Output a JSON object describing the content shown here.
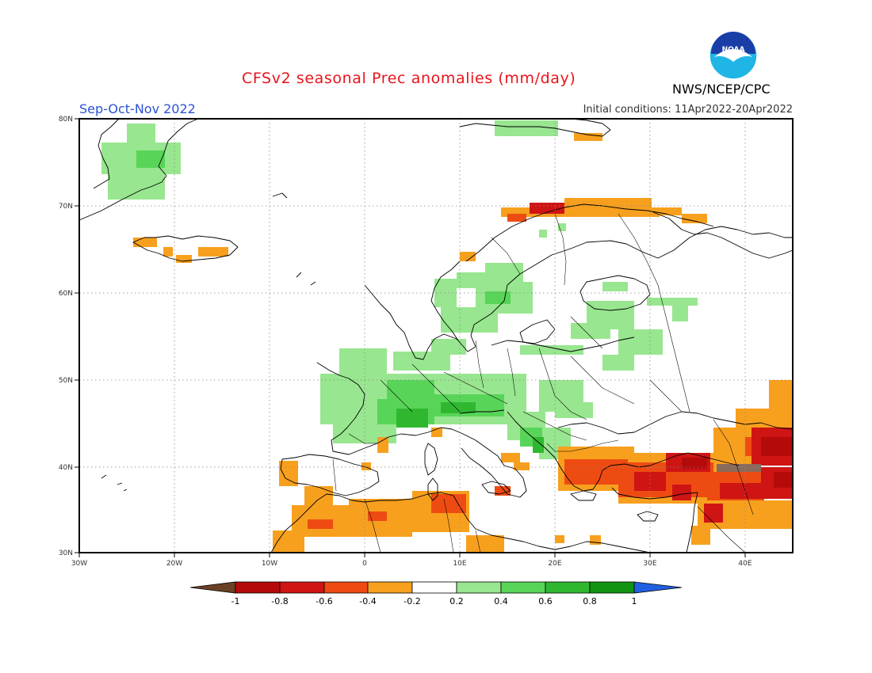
{
  "header": {
    "title": "CFSv2 seasonal Prec anomalies (mm/day)",
    "season": "Sep-Oct-Nov 2022",
    "initial_conditions": "Initial conditions: 11Apr2022-20Apr2022",
    "agency": "NWS/NCEP/CPC",
    "logo_text": "NOAA"
  },
  "axes": {
    "lon_labels": [
      "30W",
      "20W",
      "10W",
      "0",
      "10E",
      "20E",
      "30E",
      "40E"
    ],
    "lat_labels": [
      "80N",
      "70N",
      "60N",
      "50N",
      "40N",
      "30N"
    ]
  },
  "colorbar": {
    "tick_labels": [
      "-1",
      "-0.8",
      "-0.6",
      "-0.4",
      "-0.2",
      "0.2",
      "0.4",
      "0.6",
      "0.8",
      "1"
    ],
    "colors": [
      "#6b4025",
      "#b50a0a",
      "#cf1414",
      "#ee4b12",
      "#f7a01e",
      "#ffffff",
      "#98e68f",
      "#58d558",
      "#2fb82f",
      "#129412",
      "#2160e0"
    ]
  },
  "map": {
    "region": "Europe",
    "lon_range": [
      -30,
      45
    ],
    "lat_range": [
      30,
      80
    ],
    "grid": "dotted"
  }
}
